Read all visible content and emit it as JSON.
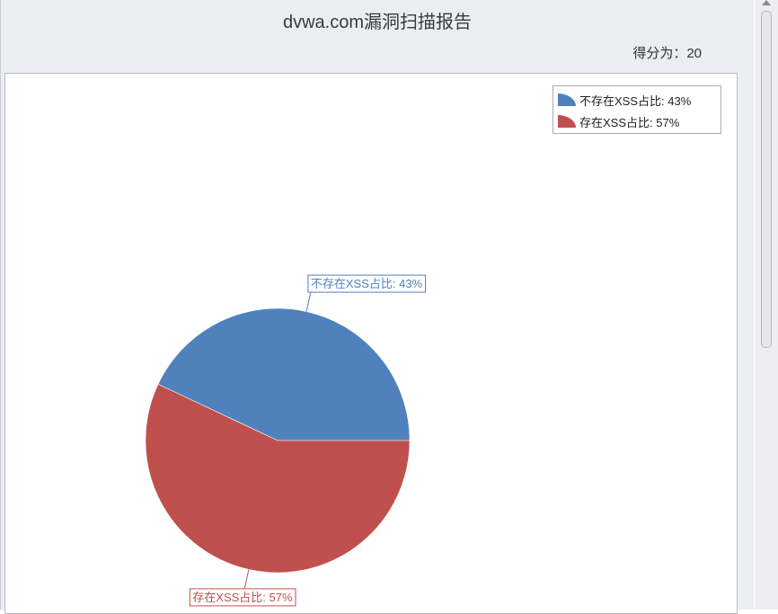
{
  "report": {
    "title": "dvwa.com漏洞扫描报告",
    "score_label": "得分为：20"
  },
  "chart_data": {
    "type": "pie",
    "title": "dvwa.com漏洞扫描报告",
    "categories": [
      "不存在XSS占比",
      "存在XSS占比"
    ],
    "values": [
      43,
      57
    ],
    "labels": [
      "不存在XSS占比: 43%",
      "存在XSS占比: 57%"
    ],
    "colors": [
      "#4f81bd",
      "#c0504d"
    ],
    "legend": {
      "position": "top-right",
      "entries": [
        "不存在XSS占比: 43%",
        "存在XSS占比: 57%"
      ]
    }
  },
  "icons": {
    "scroll_up": "arrow-up-icon"
  }
}
